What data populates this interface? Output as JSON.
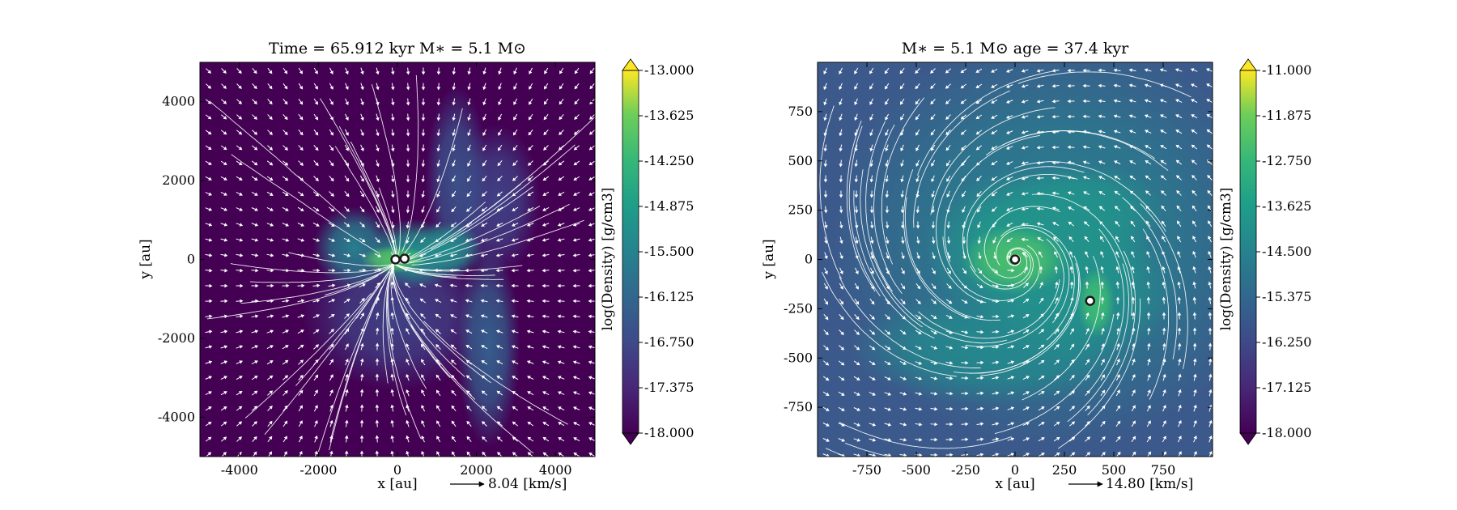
{
  "chart_data": [
    {
      "type": "heatmap",
      "subtype": "density map with velocity streamlines and quiver arrows",
      "title": "Time = 65.912 kyr    M$_*$ = 5.1 M$_\\odot$",
      "title_display": "Time = 65.912 kyr    M∗ = 5.1 M⊙",
      "xlabel": "x [au]",
      "ylabel": "y [au]",
      "xlim": [
        -5000,
        5000
      ],
      "ylim": [
        -5000,
        5000
      ],
      "xticks": [
        -4000,
        -2000,
        0,
        2000,
        4000
      ],
      "xtick_labels": [
        "-4000",
        "-2000",
        "0",
        "2000",
        "4000"
      ],
      "yticks": [
        -4000,
        -2000,
        0,
        2000,
        4000
      ],
      "ytick_labels": [
        "-4000",
        "-2000",
        "0",
        "2000",
        "4000"
      ],
      "colorbar": {
        "label": "log(Density) [g/cm3]",
        "min": -18.0,
        "max": -13.0,
        "ticks": [
          -13.0,
          -13.625,
          -14.25,
          -14.875,
          -15.5,
          -16.125,
          -16.75,
          -17.375,
          -18.0
        ],
        "tick_labels": [
          "-13.000",
          "-13.625",
          "-14.250",
          "-14.875",
          "-15.500",
          "-16.125",
          "-16.750",
          "-17.375",
          "-18.000"
        ],
        "extend": "both",
        "colormap": "viridis"
      },
      "velocity_key": {
        "label": "8.04 [km/s]"
      },
      "sinks": [
        {
          "x": -50,
          "y": 0
        },
        {
          "x": 180,
          "y": 20
        }
      ],
      "blobs": [
        {
          "x": -100,
          "y": 0,
          "sx": 520,
          "sy": 220,
          "v": -13.9
        },
        {
          "x": 450,
          "y": 150,
          "sx": 750,
          "sy": 550,
          "v": -15.1
        },
        {
          "x": 1300,
          "y": 250,
          "sx": 550,
          "sy": 450,
          "v": -15.3
        },
        {
          "x": -1100,
          "y": 300,
          "sx": 650,
          "sy": 650,
          "v": -15.6
        },
        {
          "x": 2300,
          "y": -2200,
          "sx": 500,
          "sy": 1600,
          "v": -16.3
        },
        {
          "x": 1500,
          "y": 2000,
          "sx": 500,
          "sy": 1500,
          "v": -16.6
        },
        {
          "x": 2500,
          "y": 1500,
          "sx": 700,
          "sy": 1200,
          "v": -16.9
        },
        {
          "x": 0,
          "y": -1400,
          "sx": 1500,
          "sy": 1200,
          "v": -16.9
        }
      ]
    },
    {
      "type": "heatmap",
      "subtype": "density map with velocity streamlines and quiver arrows",
      "title": "M$_*$ = 5.1 M$_\\odot$         age = 37.4 kyr",
      "title_display": "M∗ = 5.1 M⊙         age = 37.4 kyr",
      "xlabel": "x [au]",
      "ylabel": "y [au]",
      "xlim": [
        -1000,
        1000
      ],
      "ylim": [
        -1000,
        1000
      ],
      "xticks": [
        -750,
        -500,
        -250,
        0,
        250,
        500,
        750
      ],
      "xtick_labels": [
        "-750",
        "-500",
        "-250",
        "0",
        "250",
        "500",
        "750"
      ],
      "yticks": [
        -750,
        -500,
        -250,
        0,
        250,
        500,
        750
      ],
      "ytick_labels": [
        "-750",
        "-500",
        "-250",
        "0",
        "250",
        "500",
        "750"
      ],
      "colorbar": {
        "label": "log(Density) [g/cm3]",
        "min": -18.0,
        "max": -11.0,
        "ticks": [
          -11.0,
          -11.875,
          -12.75,
          -13.625,
          -14.5,
          -15.375,
          -16.25,
          -17.125,
          -18.0
        ],
        "tick_labels": [
          "-11.000",
          "-11.875",
          "-12.750",
          "-13.625",
          "-14.500",
          "-15.375",
          "-16.250",
          "-17.125",
          "-18.000"
        ],
        "extend": "both",
        "colormap": "viridis"
      },
      "velocity_key": {
        "label": "14.80 [km/s]"
      },
      "sinks": [
        {
          "x": 0,
          "y": 0
        },
        {
          "x": 380,
          "y": -210
        }
      ],
      "blobs": [
        {
          "x": 0,
          "y": 0,
          "sx": 170,
          "sy": 110,
          "v": -12.4
        },
        {
          "x": 410,
          "y": -220,
          "sx": 60,
          "sy": 110,
          "v": -12.6
        },
        {
          "x": 120,
          "y": 60,
          "sx": 360,
          "sy": 260,
          "v": -13.7
        },
        {
          "x": 350,
          "y": 250,
          "sx": 260,
          "sy": 150,
          "v": -14.0
        },
        {
          "x": 300,
          "y": -150,
          "sx": 320,
          "sy": 230,
          "v": -14.0
        },
        {
          "x": -100,
          "y": -450,
          "sx": 460,
          "sy": 180,
          "v": -14.3
        },
        {
          "x": 200,
          "y": 100,
          "sx": 700,
          "sy": 650,
          "v": -14.7
        }
      ]
    }
  ]
}
